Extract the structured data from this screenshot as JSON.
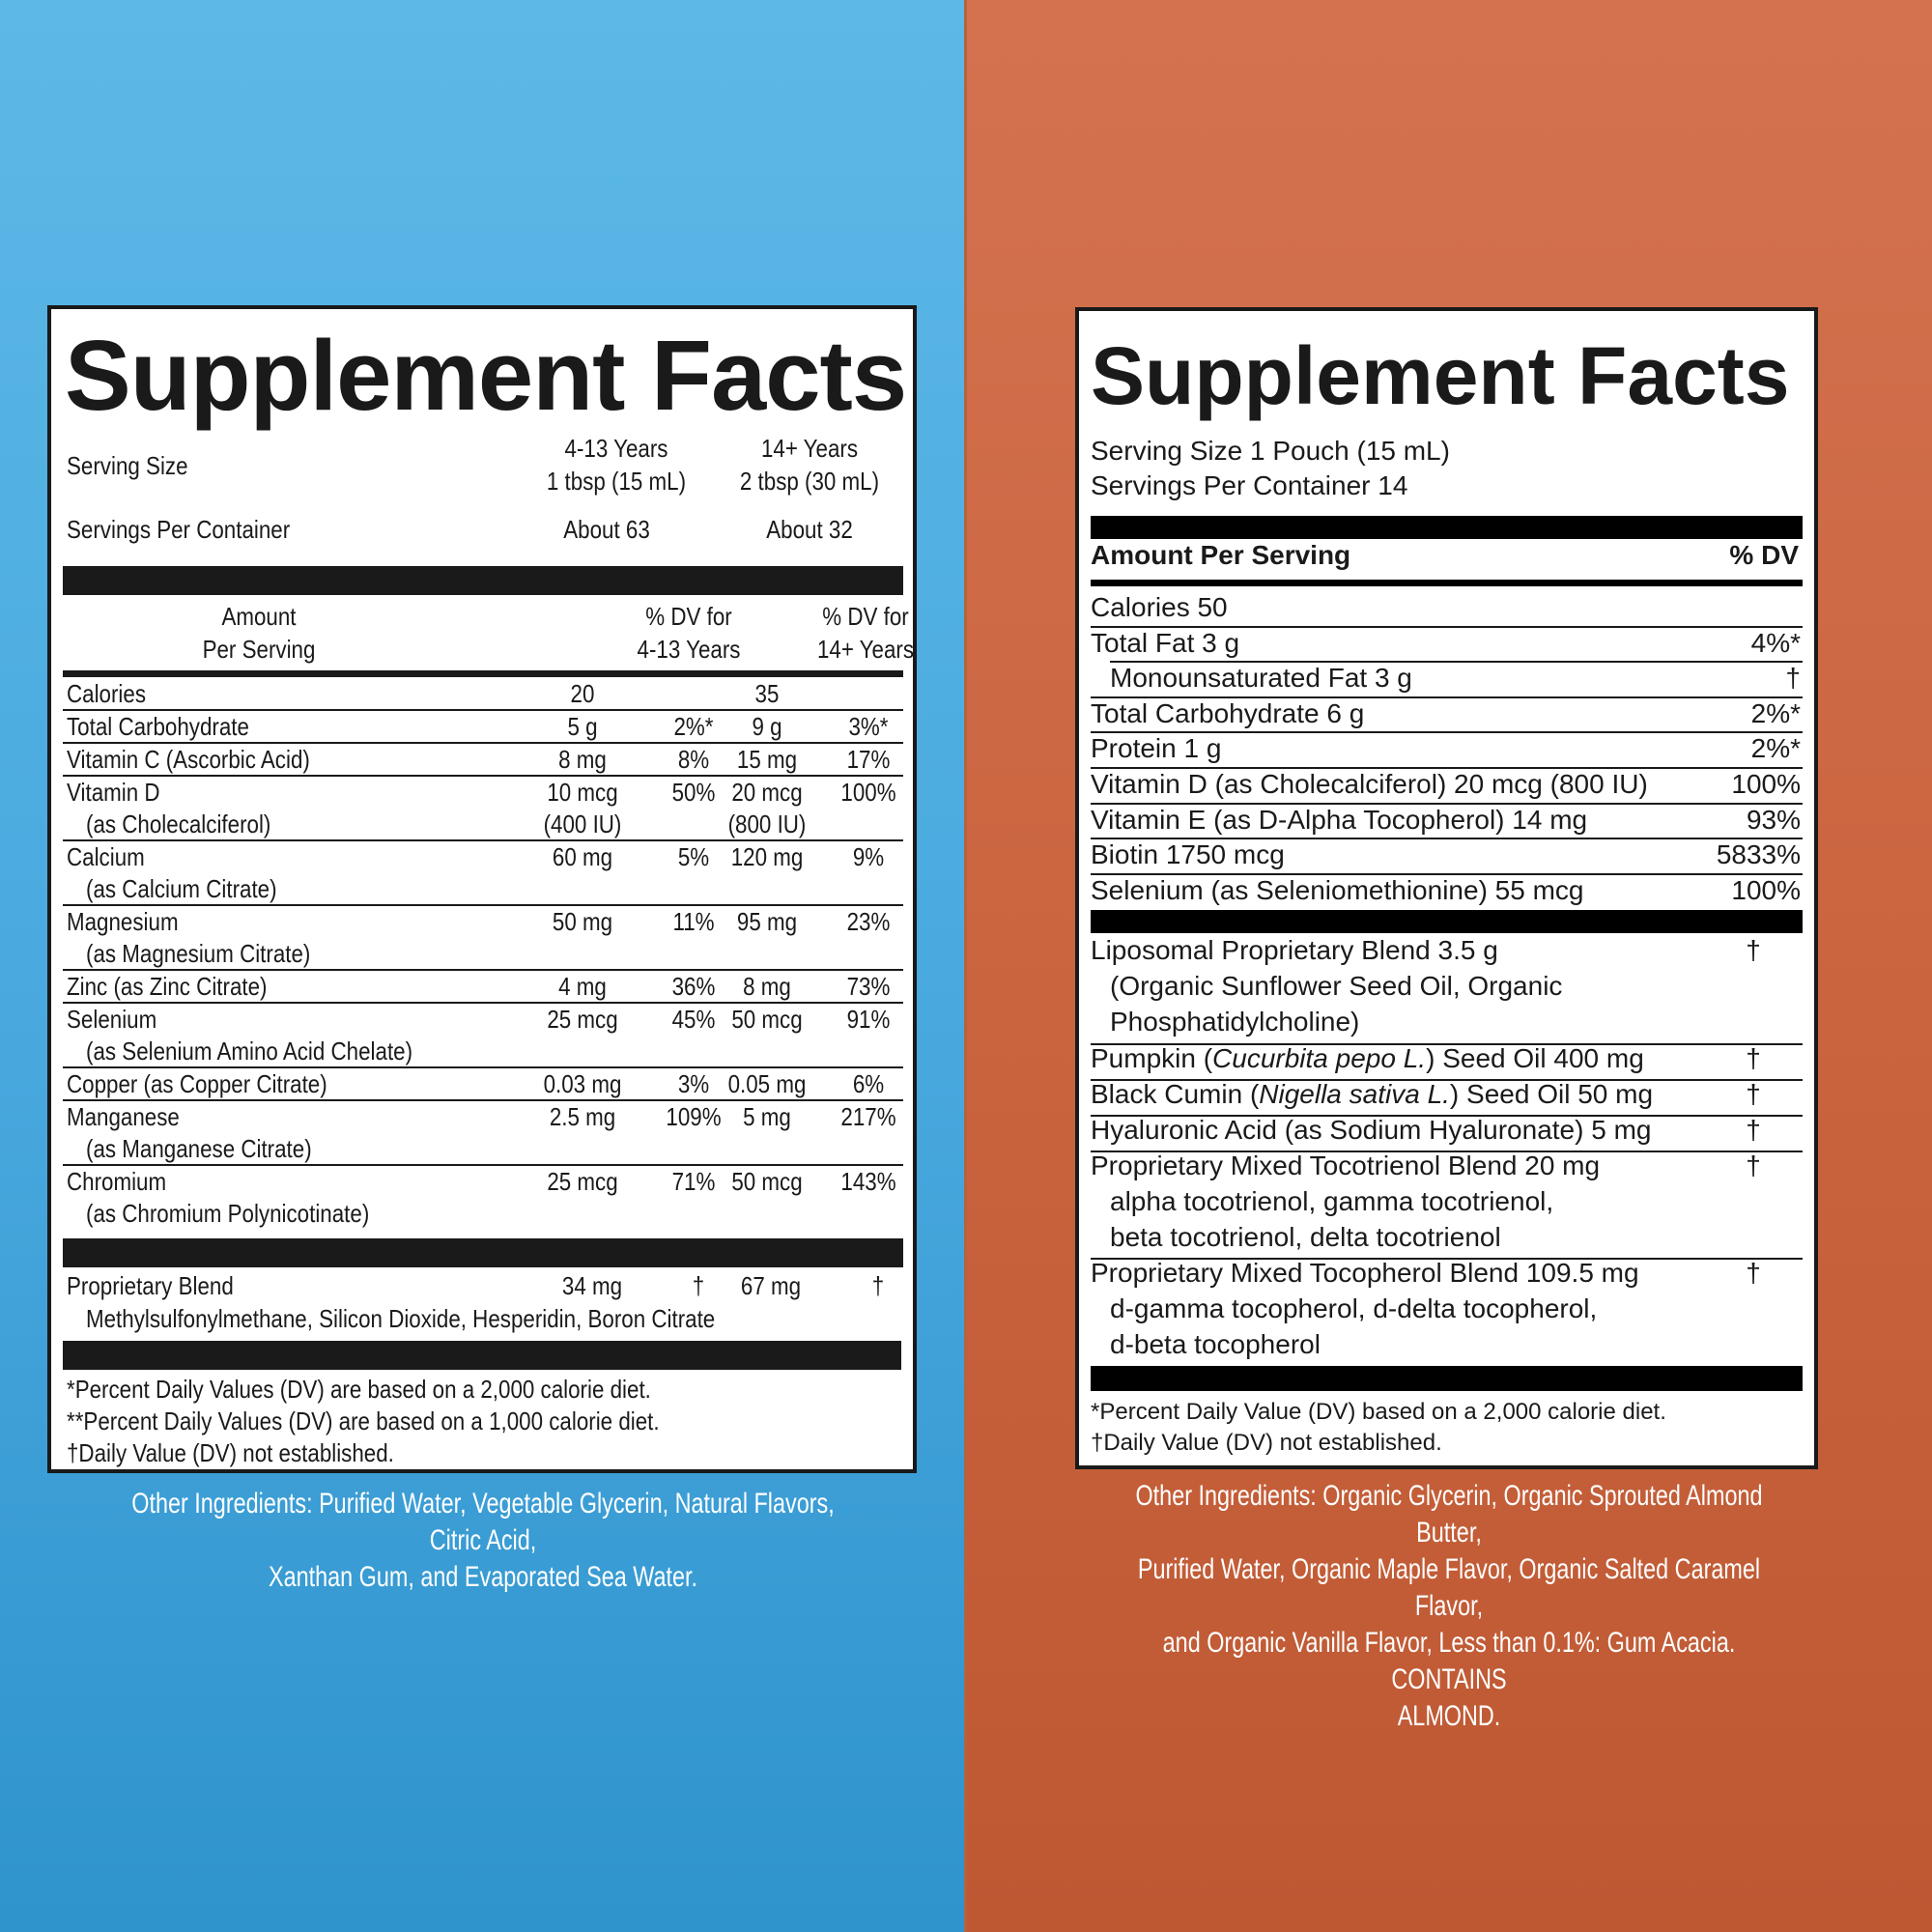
{
  "left": {
    "title": "Supplement Facts",
    "serving_size_label": "Serving Size",
    "groups": [
      "4-13 Years",
      "14+ Years"
    ],
    "serving_sizes": [
      "1 tbsp (15 mL)",
      "2 tbsp (30 mL)"
    ],
    "servings_label": "Servings Per Container",
    "servings": [
      "About 63",
      "About 32"
    ],
    "header": {
      "amount_line1": "Amount",
      "amount_line2": "Per Serving",
      "dv1_line1": "% DV for",
      "dv1_line2": "4-13 Years",
      "dv2_line1": "% DV for",
      "dv2_line2": "14+ Years"
    },
    "rows": [
      {
        "name": "Calories",
        "sub": "",
        "a1": "20",
        "a1b": "",
        "d1": "",
        "a2": "35",
        "a2b": "",
        "d2": ""
      },
      {
        "name": "Total Carbohydrate",
        "sub": "",
        "a1": "5 g",
        "a1b": "",
        "d1": "2%*",
        "a2": "9 g",
        "a2b": "",
        "d2": "3%*"
      },
      {
        "name": "Vitamin C (Ascorbic Acid)",
        "sub": "",
        "a1": "8 mg",
        "a1b": "",
        "d1": "8%",
        "a2": "15 mg",
        "a2b": "",
        "d2": "17%"
      },
      {
        "name": "Vitamin D",
        "sub": "(as Cholecalciferol)",
        "a1": "10 mcg",
        "a1b": "(400 IU)",
        "d1": "50%",
        "a2": "20 mcg",
        "a2b": "(800 IU)",
        "d2": "100%"
      },
      {
        "name": "Calcium",
        "sub": "(as Calcium Citrate)",
        "a1": "60 mg",
        "a1b": "",
        "d1": "5%",
        "a2": "120 mg",
        "a2b": "",
        "d2": "9%"
      },
      {
        "name": "Magnesium",
        "sub": "(as Magnesium Citrate)",
        "a1": "50 mg",
        "a1b": "",
        "d1": "11%",
        "a2": "95 mg",
        "a2b": "",
        "d2": "23%"
      },
      {
        "name": "Zinc (as Zinc Citrate)",
        "sub": "",
        "a1": "4 mg",
        "a1b": "",
        "d1": "36%",
        "a2": "8 mg",
        "a2b": "",
        "d2": "73%"
      },
      {
        "name": "Selenium",
        "sub": "(as Selenium Amino Acid Chelate)",
        "a1": "25 mcg",
        "a1b": "",
        "d1": "45%",
        "a2": "50 mcg",
        "a2b": "",
        "d2": "91%"
      },
      {
        "name": "Copper (as Copper Citrate)",
        "sub": "",
        "a1": "0.03 mg",
        "a1b": "",
        "d1": "3%",
        "a2": "0.05 mg",
        "a2b": "",
        "d2": "6%"
      },
      {
        "name": "Manganese",
        "sub": "(as Manganese Citrate)",
        "a1": "2.5 mg",
        "a1b": "",
        "d1": "109%",
        "a2": "5 mg",
        "a2b": "",
        "d2": "217%"
      },
      {
        "name": "Chromium",
        "sub": "(as Chromium Polynicotinate)",
        "a1": "25 mcg",
        "a1b": "",
        "d1": "71%",
        "a2": "50 mcg",
        "a2b": "",
        "d2": "143%"
      }
    ],
    "blend": {
      "name": "Proprietary Blend",
      "a1": "34 mg",
      "d1": "†",
      "a2": "67 mg",
      "d2": "†",
      "sub": "Methylsulfonylmethane, Silicon Dioxide, Hesperidin, Boron Citrate"
    },
    "footnotes": [
      "*Percent Daily Values (DV) are based on a 2,000 calorie diet.",
      "**Percent Daily Values (DV) are based on a 1,000 calorie diet.",
      "†Daily Value (DV) not established."
    ],
    "other_line1": "Other Ingredients: Purified Water, Vegetable Glycerin, Natural Flavors, Citric Acid,",
    "other_line2": "Xanthan Gum, and Evaporated Sea Water."
  },
  "right": {
    "title": "Supplement Facts",
    "serving_size": "Serving Size 1 Pouch (15 mL)",
    "servings": "Servings Per Container 14",
    "header_amount": "Amount Per Serving",
    "header_dv": "% DV",
    "rows": [
      {
        "name": "Calories 50",
        "dv": ""
      },
      {
        "name": "Total Fat 3 g",
        "dv": "4%*"
      },
      {
        "name": "Monounsaturated Fat 3 g",
        "dv": "†"
      },
      {
        "name": "Total Carbohydrate 6 g",
        "dv": "2%*"
      },
      {
        "name": "Protein 1 g",
        "dv": "2%*"
      },
      {
        "name": "Vitamin D (as Cholecalciferol) 20 mcg (800 IU)",
        "dv": "100%"
      },
      {
        "name": "Vitamin E (as D-Alpha Tocopherol) 14 mg",
        "dv": "93%"
      },
      {
        "name": "Biotin 1750 mcg",
        "dv": "5833%"
      },
      {
        "name": "Selenium (as Seleniomethionine) 55 mcg",
        "dv": "100%"
      }
    ],
    "blends": {
      "liposomal_l1": "Liposomal Proprietary Blend 3.5 g",
      "liposomal_l2": "(Organic Sunflower Seed Oil, Organic",
      "liposomal_l3": "Phosphatidylcholine)",
      "pumpkin_pre": "Pumpkin (",
      "pumpkin_it": "Cucurbita pepo L.",
      "pumpkin_post": ") Seed Oil 400 mg",
      "cumin_pre": "Black Cumin (",
      "cumin_it": "Nigella sativa L.",
      "cumin_post": ") Seed Oil 50 mg",
      "hyaluronic": "Hyaluronic Acid (as Sodium Hyaluronate) 5 mg",
      "toco_l1": "Proprietary Mixed Tocotrienol Blend 20 mg",
      "toco_l2": "alpha tocotrienol, gamma tocotrienol,",
      "toco_l3": "beta tocotrienol, delta tocotrienol",
      "tocoph_l1": "Proprietary Mixed Tocopherol Blend 109.5 mg",
      "tocoph_l2": "d-gamma tocopherol, d-delta tocopherol,",
      "tocoph_l3": "d-beta tocopherol",
      "dagger": "†"
    },
    "footnotes": [
      "*Percent Daily Value (DV) based on a 2,000 calorie diet.",
      "†Daily Value (DV) not established."
    ],
    "other_line1": "Other Ingredients: Organic Glycerin, Organic Sprouted Almond Butter,",
    "other_line2": "Purified Water, Organic Maple Flavor, Organic Salted Caramel Flavor,",
    "other_line3": "and Organic Vanilla Flavor, Less than 0.1%: Gum Acacia. CONTAINS",
    "other_line4": "ALMOND."
  },
  "colors": {
    "left_bg": "#4aa9df",
    "right_bg": "#c9643e",
    "panel": "#ffffff",
    "ink": "#1a1a1a"
  }
}
